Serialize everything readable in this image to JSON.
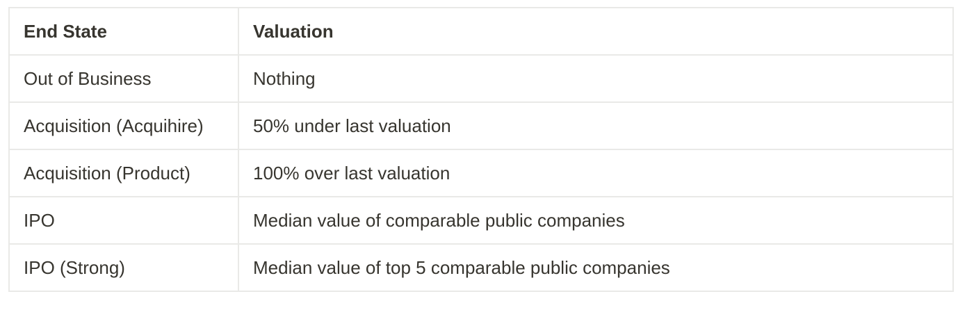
{
  "table": {
    "headers": [
      "End State",
      "Valuation"
    ],
    "rows": [
      [
        "Out of Business",
        "Nothing"
      ],
      [
        "Acquisition (Acquihire)",
        "50% under last valuation"
      ],
      [
        "Acquisition (Product)",
        "100% over last valuation"
      ],
      [
        "IPO",
        "Median value of comparable public companies"
      ],
      [
        "IPO (Strong)",
        "Median value of top 5 comparable public companies"
      ]
    ]
  }
}
